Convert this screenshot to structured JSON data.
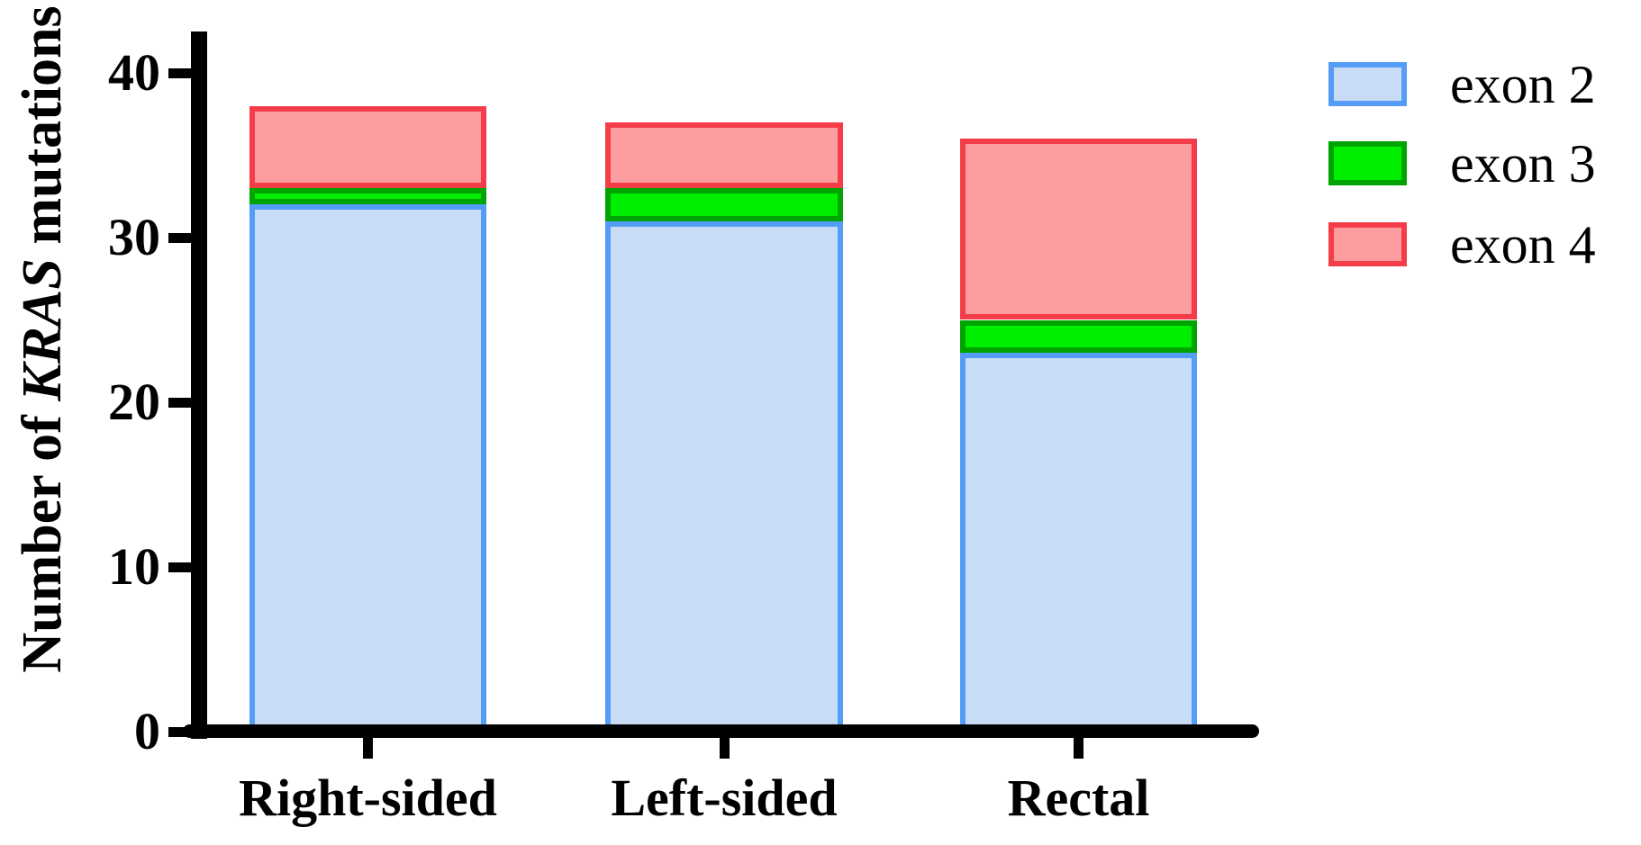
{
  "yaxis": {
    "title_prefix": "Number of ",
    "title_italic": "KRAS",
    "title_suffix": " mutations"
  },
  "chart_data": {
    "type": "bar",
    "stacked": true,
    "title": "",
    "xlabel": "",
    "ylabel": "Number of KRAS mutations",
    "categories": [
      "Right-sided",
      "Left-sided",
      "Rectal"
    ],
    "series": [
      {
        "name": "exon 2",
        "values": [
          32,
          31,
          23
        ],
        "fill": "#C9DCF5",
        "stroke": "#549CF5"
      },
      {
        "name": "exon 3",
        "values": [
          1,
          2,
          2
        ],
        "fill": "#00EF00",
        "stroke": "#00A400"
      },
      {
        "name": "exon 4",
        "values": [
          5,
          4,
          11
        ],
        "fill": "#FC9D9F",
        "stroke": "#F53D49"
      }
    ],
    "totals": [
      38,
      37,
      36
    ],
    "ylim": [
      0,
      40
    ],
    "yticks": [
      0,
      10,
      20,
      30,
      40
    ],
    "grid": false,
    "legend_position": "top-right",
    "axis_color": "#000000",
    "text_color": "#000000",
    "background": "#FFFFFF"
  }
}
